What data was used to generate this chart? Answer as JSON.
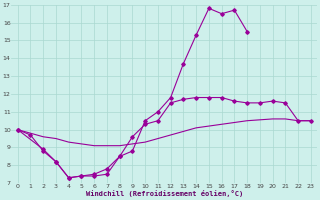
{
  "bg_color": "#cef0eb",
  "grid_color": "#aad8d0",
  "line_color": "#990099",
  "xlim": [
    -0.5,
    23.5
  ],
  "ylim": [
    7,
    17
  ],
  "yticks": [
    7,
    8,
    9,
    10,
    11,
    12,
    13,
    14,
    15,
    16,
    17
  ],
  "xticks": [
    0,
    1,
    2,
    3,
    4,
    5,
    6,
    7,
    8,
    9,
    10,
    11,
    12,
    13,
    14,
    15,
    16,
    17,
    18,
    19,
    20,
    21,
    22,
    23
  ],
  "xlabel": "Windchill (Refroidissement éolien,°C)",
  "curve1_x": [
    0,
    1,
    2,
    3,
    4,
    5,
    6,
    7,
    8,
    9,
    10,
    11,
    12,
    13,
    14,
    15,
    16,
    17,
    18
  ],
  "curve1_y": [
    10.0,
    9.7,
    8.8,
    8.2,
    7.3,
    7.4,
    7.4,
    7.5,
    8.5,
    8.8,
    10.5,
    11.0,
    11.8,
    13.7,
    15.3,
    16.8,
    16.5,
    16.7,
    15.5
  ],
  "curve2_x": [
    0,
    1,
    2,
    3,
    4,
    5,
    6,
    7,
    8,
    9,
    10,
    11,
    12,
    13,
    14,
    15,
    16,
    17,
    18,
    19,
    20,
    21,
    22,
    23
  ],
  "curve2_y": [
    10.0,
    9.8,
    9.6,
    9.5,
    9.3,
    9.2,
    9.1,
    9.1,
    9.1,
    9.2,
    9.3,
    9.5,
    9.7,
    9.9,
    10.1,
    10.2,
    10.3,
    10.4,
    10.5,
    10.55,
    10.6,
    10.6,
    10.5,
    10.5
  ],
  "curve3_x": [
    0,
    2,
    3,
    4,
    5,
    6,
    7,
    8,
    9,
    10,
    11,
    12,
    13,
    14,
    15,
    16,
    17,
    18,
    19,
    20,
    21,
    22,
    23
  ],
  "curve3_y": [
    10.0,
    8.9,
    8.2,
    7.3,
    7.4,
    7.5,
    7.8,
    8.5,
    9.6,
    10.3,
    10.5,
    11.5,
    11.7,
    11.8,
    11.8,
    11.8,
    11.6,
    11.5,
    11.5,
    11.6,
    11.5,
    10.5,
    10.5
  ]
}
